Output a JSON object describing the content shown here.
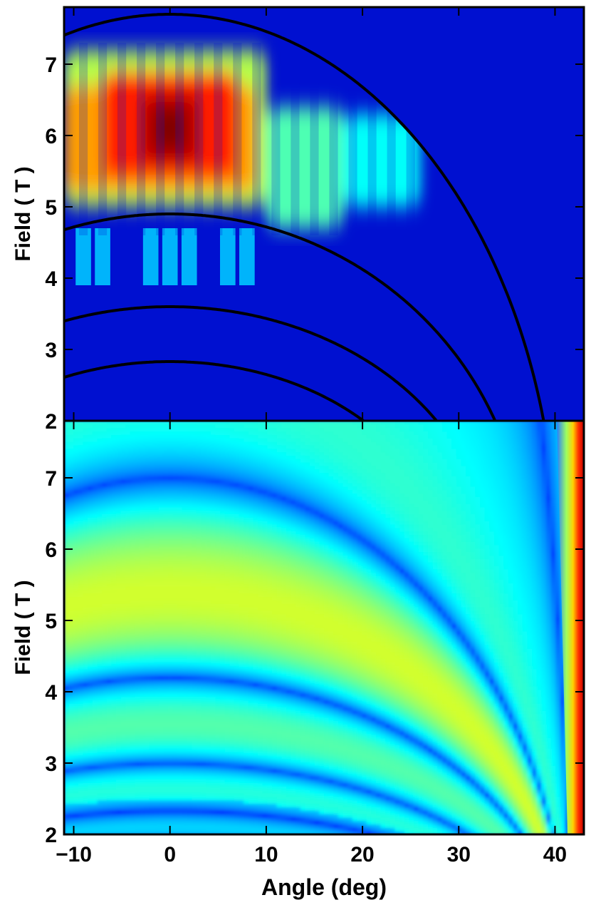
{
  "chart_data": [
    {
      "type": "heatmap",
      "title": "",
      "xlabel": "",
      "ylabel": "Field ( T )",
      "xlim": [
        -11,
        43
      ],
      "ylim": [
        2,
        7.8
      ],
      "x_ticks": [
        -10,
        0,
        10,
        20,
        30,
        40
      ],
      "x_tick_labels": [],
      "y_ticks": [
        2,
        3,
        4,
        5,
        6,
        7
      ],
      "y_tick_labels": [
        "2",
        "3",
        "4",
        "5",
        "6",
        "7"
      ],
      "colormap": "jet",
      "background_color": "#0010d0",
      "intensity_summary": {
        "max_at": {
          "angle": 0,
          "field": 6.1
        },
        "strong_band_field_range": [
          5.0,
          7.2
        ],
        "weak_band_field": 4.3,
        "column_stripes_angle_step": 2,
        "upper_boundary": "intensity is zero above the outer fitted curve (field 7.7 at 0 deg, reaching 2 T near 40 deg)"
      },
      "curves": [
        {
          "name": "",
          "peak_field": 7.7,
          "zero_angle": 40.2,
          "color": "#000000"
        },
        {
          "name": "",
          "peak_field": 4.9,
          "zero_angle": 37.0,
          "color": "#000000"
        },
        {
          "name": "",
          "peak_field": 3.6,
          "zero_angle": 33.3,
          "color": "#000000"
        },
        {
          "name": "",
          "peak_field": 2.83,
          "zero_angle": 28.4,
          "color": "#000000"
        }
      ]
    },
    {
      "type": "heatmap",
      "title": "",
      "xlabel": "Angle (deg)",
      "ylabel": "Field ( T )",
      "xlim": [
        -11,
        43
      ],
      "ylim": [
        2,
        7.8
      ],
      "x_ticks": [
        -10,
        0,
        10,
        20,
        30,
        40
      ],
      "x_tick_labels": [
        "−10",
        "0",
        "10",
        "20",
        "30",
        "40"
      ],
      "y_ticks": [
        2,
        3,
        4,
        5,
        6,
        7
      ],
      "y_tick_labels": [
        "2",
        "3",
        "4",
        "5",
        "6",
        "7"
      ],
      "colormap": "jet",
      "intensity_summary": {
        "pattern": "arc-shaped fringes following field = F0*sqrt(1 - (angle/angle0)^2), with dark minima at F0 = 4.9, 3.6, 2.83, 2.3",
        "broad_maximum_field": 6.1,
        "edge_maximum_angle": 42
      }
    }
  ]
}
